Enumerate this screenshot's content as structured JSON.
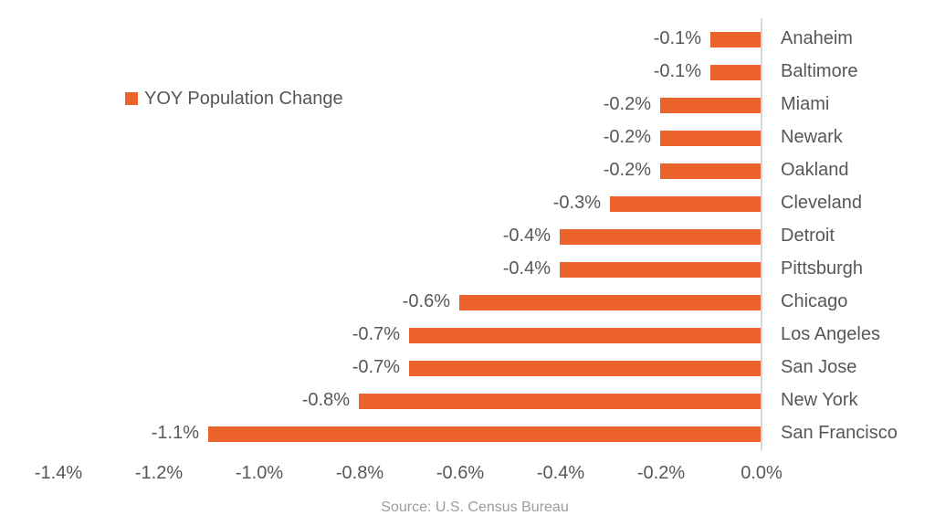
{
  "chart_data": {
    "type": "bar",
    "orientation": "horizontal",
    "legend": "YOY Population Change",
    "categories": [
      "Anaheim",
      "Baltimore",
      "Miami",
      "Newark",
      "Oakland",
      "Cleveland",
      "Detroit",
      "Pittsburgh",
      "Chicago",
      "Los Angeles",
      "San Jose",
      "New York",
      "San Francisco"
    ],
    "values": [
      -0.1,
      -0.1,
      -0.2,
      -0.2,
      -0.2,
      -0.3,
      -0.4,
      -0.4,
      -0.6,
      -0.7,
      -0.7,
      -0.8,
      -1.1
    ],
    "value_labels": [
      "-0.1%",
      "-0.1%",
      "-0.2%",
      "-0.2%",
      "-0.2%",
      "-0.3%",
      "-0.4%",
      "-0.4%",
      "-0.6%",
      "-0.7%",
      "-0.7%",
      "-0.8%",
      "-1.1%"
    ],
    "x_ticks": [
      "-1.4%",
      "-1.2%",
      "-1.0%",
      "-0.8%",
      "-0.6%",
      "-0.4%",
      "-0.2%",
      "0.0%"
    ],
    "x_tick_values": [
      -1.4,
      -1.2,
      -1.0,
      -0.8,
      -0.6,
      -0.4,
      -0.2,
      0.0
    ],
    "xlim": [
      -1.4,
      0.0
    ],
    "grid": "off",
    "legend_position": "upper-left",
    "source": "Source: U.S. Census Bureau",
    "colors": {
      "bar": "#EB622A",
      "label_text": "#56575B",
      "source_text": "#9B9CA1",
      "axis_line": "#D8D8D8"
    }
  }
}
